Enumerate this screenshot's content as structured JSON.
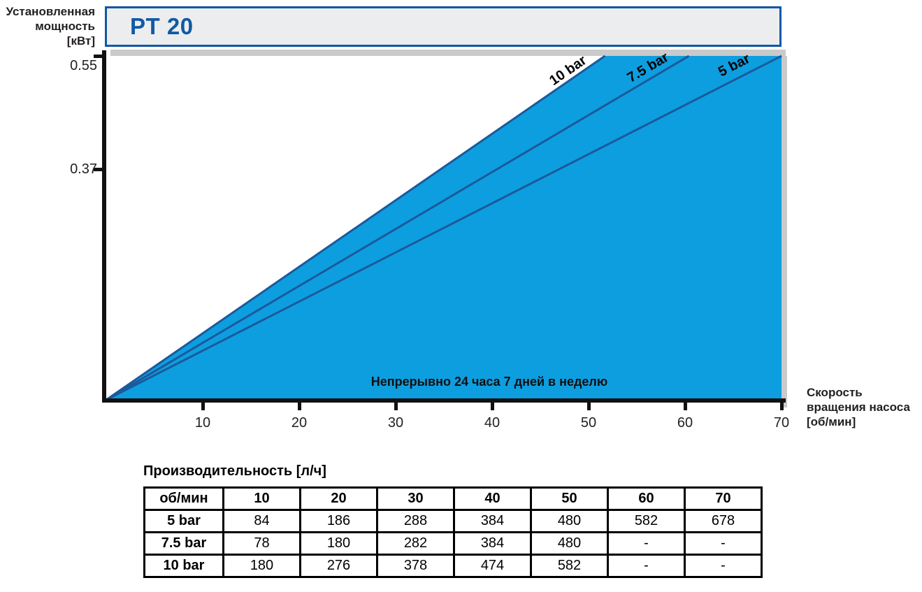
{
  "header": {
    "title": "PT 20"
  },
  "chart_data": {
    "type": "line",
    "title": "PT 20",
    "ylabel": "Установленная мощность [кВт]",
    "ylabel_lines": [
      "Установленная",
      "мощность",
      "[кВт]"
    ],
    "xlabel": "Скорость вращения насоса [об/мин]",
    "xlabel_lines": [
      "Скорость",
      "вращения насоса",
      "[об/мин]"
    ],
    "xlim": [
      0,
      70
    ],
    "ylim": [
      0,
      0.55
    ],
    "x_ticks": [
      10,
      20,
      30,
      40,
      50,
      60,
      70
    ],
    "y_ticks": [
      0.55,
      0.37
    ],
    "grid": false,
    "legend_position": "inline-rotated-labels",
    "note": "Непрерывно 24 часа 7 дней в неделю",
    "series": [
      {
        "name": "10 bar",
        "points": [
          [
            0,
            0
          ],
          [
            51.7,
            0.55
          ]
        ]
      },
      {
        "name": "7.5 bar",
        "points": [
          [
            0,
            0
          ],
          [
            60.4,
            0.55
          ]
        ]
      },
      {
        "name": "5 bar",
        "points": [
          [
            0,
            0
          ],
          [
            70.0,
            0.55
          ]
        ]
      }
    ],
    "area": "filled region under 10 bar line up to chart top-right",
    "colors": {
      "area_fill": "#0D9EE0",
      "line": "#1A5A9A",
      "axis": "#111111",
      "header_blue": "#0F5AA5",
      "header_bg": "#ECEDEE",
      "shadow": "#C9CACB"
    }
  },
  "table": {
    "title": "Производительность [л/ч]",
    "header": [
      "об/мин",
      "10",
      "20",
      "30",
      "40",
      "50",
      "60",
      "70"
    ],
    "rows": [
      {
        "label": "5 bar",
        "values": [
          "84",
          "186",
          "288",
          "384",
          "480",
          "582",
          "678"
        ]
      },
      {
        "label": "7.5 bar",
        "values": [
          "78",
          "180",
          "282",
          "384",
          "480",
          "-",
          "-"
        ]
      },
      {
        "label": "10 bar",
        "values": [
          "180",
          "276",
          "378",
          "474",
          "582",
          "-",
          "-"
        ]
      }
    ]
  }
}
